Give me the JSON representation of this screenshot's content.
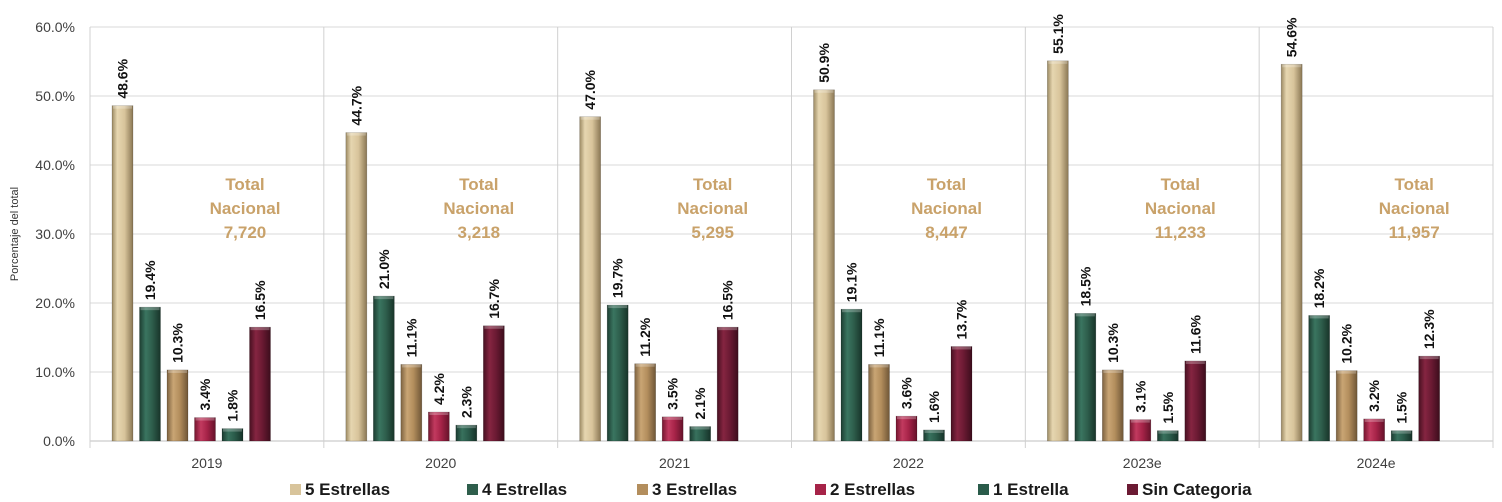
{
  "chart_data": {
    "type": "bar",
    "title": "",
    "xlabel": "",
    "ylabel": "Porcentaje del total",
    "ylim": [
      0,
      60
    ],
    "y_ticks": [
      "0.0%",
      "10.0%",
      "20.0%",
      "30.0%",
      "40.0%",
      "50.0%",
      "60.0%"
    ],
    "categories": [
      "2019",
      "2020",
      "2021",
      "2022",
      "2023e",
      "2024e"
    ],
    "series": [
      {
        "name": "5 Estrellas",
        "color": "#d8c49b",
        "values": [
          48.6,
          44.7,
          47.0,
          50.9,
          55.1,
          54.6
        ],
        "labels": [
          "48.6%",
          "44.7%",
          "47.0%",
          "50.9%",
          "55.1%",
          "54.6%"
        ]
      },
      {
        "name": "4 Estrellas",
        "color": "#2e5e4c",
        "values": [
          19.4,
          21.0,
          19.7,
          19.1,
          18.5,
          18.2
        ],
        "labels": [
          "19.4%",
          "21.0%",
          "19.7%",
          "19.1%",
          "18.5%",
          "18.2%"
        ]
      },
      {
        "name": "3 Estrellas",
        "color": "#b38e5d",
        "values": [
          10.3,
          11.1,
          11.2,
          11.1,
          10.3,
          10.2
        ],
        "labels": [
          "10.3%",
          "11.1%",
          "11.2%",
          "11.1%",
          "10.3%",
          "10.2%"
        ]
      },
      {
        "name": "2 Estrellas",
        "color": "#a62348",
        "values": [
          3.4,
          4.2,
          3.5,
          3.6,
          3.1,
          3.2
        ],
        "labels": [
          "3.4%",
          "4.2%",
          "3.5%",
          "3.6%",
          "3.1%",
          "3.2%"
        ]
      },
      {
        "name": "1 Estrella",
        "color": "#2a5b4a",
        "values": [
          1.8,
          2.3,
          2.1,
          1.6,
          1.5,
          1.5
        ],
        "labels": [
          "1.8%",
          "2.3%",
          "2.1%",
          "1.6%",
          "1.5%",
          "1.5%"
        ]
      },
      {
        "name": "Sin Categoria",
        "color": "#6b1a33",
        "values": [
          16.5,
          16.7,
          16.5,
          13.7,
          11.6,
          12.3
        ],
        "labels": [
          "16.5%",
          "16.7%",
          "16.5%",
          "13.7%",
          "11.6%",
          "12.3%"
        ]
      }
    ],
    "annotations": [
      {
        "line1": "Total",
        "line2": "Nacional",
        "line3": "7,720"
      },
      {
        "line1": "Total",
        "line2": "Nacional",
        "line3": "3,218"
      },
      {
        "line1": "Total",
        "line2": "Nacional",
        "line3": "5,295"
      },
      {
        "line1": "Total",
        "line2": "Nacional",
        "line3": "8,447"
      },
      {
        "line1": "Total",
        "line2": "Nacional",
        "line3": "11,233"
      },
      {
        "line1": "Total",
        "line2": "Nacional",
        "line3": "11,957"
      }
    ],
    "annotation_color": "#c9a26a",
    "grid": true,
    "legend_position": "bottom"
  }
}
